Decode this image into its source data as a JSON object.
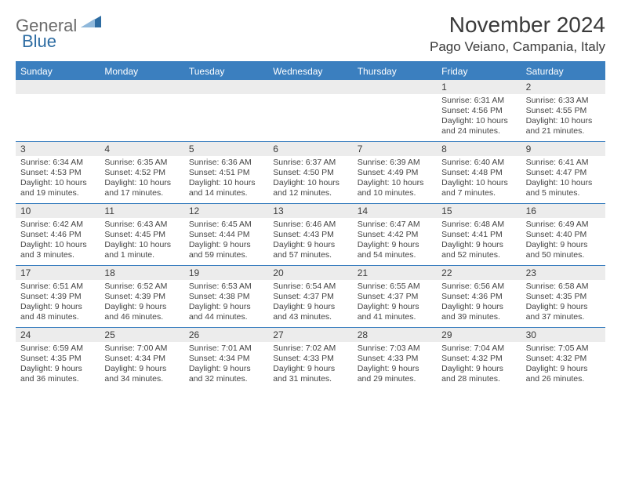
{
  "logo": {
    "part1": "General",
    "part2": "Blue"
  },
  "title": "November 2024",
  "location": "Pago Veiano, Campania, Italy",
  "header_bg": "#3b7fbf",
  "daynum_bg": "#ececec",
  "border_color": "#3b7fbf",
  "text_color": "#333333",
  "day_names": [
    "Sunday",
    "Monday",
    "Tuesday",
    "Wednesday",
    "Thursday",
    "Friday",
    "Saturday"
  ],
  "weeks": [
    [
      {
        "n": "",
        "sr": "",
        "ss": "",
        "dl": ""
      },
      {
        "n": "",
        "sr": "",
        "ss": "",
        "dl": ""
      },
      {
        "n": "",
        "sr": "",
        "ss": "",
        "dl": ""
      },
      {
        "n": "",
        "sr": "",
        "ss": "",
        "dl": ""
      },
      {
        "n": "",
        "sr": "",
        "ss": "",
        "dl": ""
      },
      {
        "n": "1",
        "sr": "Sunrise: 6:31 AM",
        "ss": "Sunset: 4:56 PM",
        "dl": "Daylight: 10 hours and 24 minutes."
      },
      {
        "n": "2",
        "sr": "Sunrise: 6:33 AM",
        "ss": "Sunset: 4:55 PM",
        "dl": "Daylight: 10 hours and 21 minutes."
      }
    ],
    [
      {
        "n": "3",
        "sr": "Sunrise: 6:34 AM",
        "ss": "Sunset: 4:53 PM",
        "dl": "Daylight: 10 hours and 19 minutes."
      },
      {
        "n": "4",
        "sr": "Sunrise: 6:35 AM",
        "ss": "Sunset: 4:52 PM",
        "dl": "Daylight: 10 hours and 17 minutes."
      },
      {
        "n": "5",
        "sr": "Sunrise: 6:36 AM",
        "ss": "Sunset: 4:51 PM",
        "dl": "Daylight: 10 hours and 14 minutes."
      },
      {
        "n": "6",
        "sr": "Sunrise: 6:37 AM",
        "ss": "Sunset: 4:50 PM",
        "dl": "Daylight: 10 hours and 12 minutes."
      },
      {
        "n": "7",
        "sr": "Sunrise: 6:39 AM",
        "ss": "Sunset: 4:49 PM",
        "dl": "Daylight: 10 hours and 10 minutes."
      },
      {
        "n": "8",
        "sr": "Sunrise: 6:40 AM",
        "ss": "Sunset: 4:48 PM",
        "dl": "Daylight: 10 hours and 7 minutes."
      },
      {
        "n": "9",
        "sr": "Sunrise: 6:41 AM",
        "ss": "Sunset: 4:47 PM",
        "dl": "Daylight: 10 hours and 5 minutes."
      }
    ],
    [
      {
        "n": "10",
        "sr": "Sunrise: 6:42 AM",
        "ss": "Sunset: 4:46 PM",
        "dl": "Daylight: 10 hours and 3 minutes."
      },
      {
        "n": "11",
        "sr": "Sunrise: 6:43 AM",
        "ss": "Sunset: 4:45 PM",
        "dl": "Daylight: 10 hours and 1 minute."
      },
      {
        "n": "12",
        "sr": "Sunrise: 6:45 AM",
        "ss": "Sunset: 4:44 PM",
        "dl": "Daylight: 9 hours and 59 minutes."
      },
      {
        "n": "13",
        "sr": "Sunrise: 6:46 AM",
        "ss": "Sunset: 4:43 PM",
        "dl": "Daylight: 9 hours and 57 minutes."
      },
      {
        "n": "14",
        "sr": "Sunrise: 6:47 AM",
        "ss": "Sunset: 4:42 PM",
        "dl": "Daylight: 9 hours and 54 minutes."
      },
      {
        "n": "15",
        "sr": "Sunrise: 6:48 AM",
        "ss": "Sunset: 4:41 PM",
        "dl": "Daylight: 9 hours and 52 minutes."
      },
      {
        "n": "16",
        "sr": "Sunrise: 6:49 AM",
        "ss": "Sunset: 4:40 PM",
        "dl": "Daylight: 9 hours and 50 minutes."
      }
    ],
    [
      {
        "n": "17",
        "sr": "Sunrise: 6:51 AM",
        "ss": "Sunset: 4:39 PM",
        "dl": "Daylight: 9 hours and 48 minutes."
      },
      {
        "n": "18",
        "sr": "Sunrise: 6:52 AM",
        "ss": "Sunset: 4:39 PM",
        "dl": "Daylight: 9 hours and 46 minutes."
      },
      {
        "n": "19",
        "sr": "Sunrise: 6:53 AM",
        "ss": "Sunset: 4:38 PM",
        "dl": "Daylight: 9 hours and 44 minutes."
      },
      {
        "n": "20",
        "sr": "Sunrise: 6:54 AM",
        "ss": "Sunset: 4:37 PM",
        "dl": "Daylight: 9 hours and 43 minutes."
      },
      {
        "n": "21",
        "sr": "Sunrise: 6:55 AM",
        "ss": "Sunset: 4:37 PM",
        "dl": "Daylight: 9 hours and 41 minutes."
      },
      {
        "n": "22",
        "sr": "Sunrise: 6:56 AM",
        "ss": "Sunset: 4:36 PM",
        "dl": "Daylight: 9 hours and 39 minutes."
      },
      {
        "n": "23",
        "sr": "Sunrise: 6:58 AM",
        "ss": "Sunset: 4:35 PM",
        "dl": "Daylight: 9 hours and 37 minutes."
      }
    ],
    [
      {
        "n": "24",
        "sr": "Sunrise: 6:59 AM",
        "ss": "Sunset: 4:35 PM",
        "dl": "Daylight: 9 hours and 36 minutes."
      },
      {
        "n": "25",
        "sr": "Sunrise: 7:00 AM",
        "ss": "Sunset: 4:34 PM",
        "dl": "Daylight: 9 hours and 34 minutes."
      },
      {
        "n": "26",
        "sr": "Sunrise: 7:01 AM",
        "ss": "Sunset: 4:34 PM",
        "dl": "Daylight: 9 hours and 32 minutes."
      },
      {
        "n": "27",
        "sr": "Sunrise: 7:02 AM",
        "ss": "Sunset: 4:33 PM",
        "dl": "Daylight: 9 hours and 31 minutes."
      },
      {
        "n": "28",
        "sr": "Sunrise: 7:03 AM",
        "ss": "Sunset: 4:33 PM",
        "dl": "Daylight: 9 hours and 29 minutes."
      },
      {
        "n": "29",
        "sr": "Sunrise: 7:04 AM",
        "ss": "Sunset: 4:32 PM",
        "dl": "Daylight: 9 hours and 28 minutes."
      },
      {
        "n": "30",
        "sr": "Sunrise: 7:05 AM",
        "ss": "Sunset: 4:32 PM",
        "dl": "Daylight: 9 hours and 26 minutes."
      }
    ]
  ]
}
